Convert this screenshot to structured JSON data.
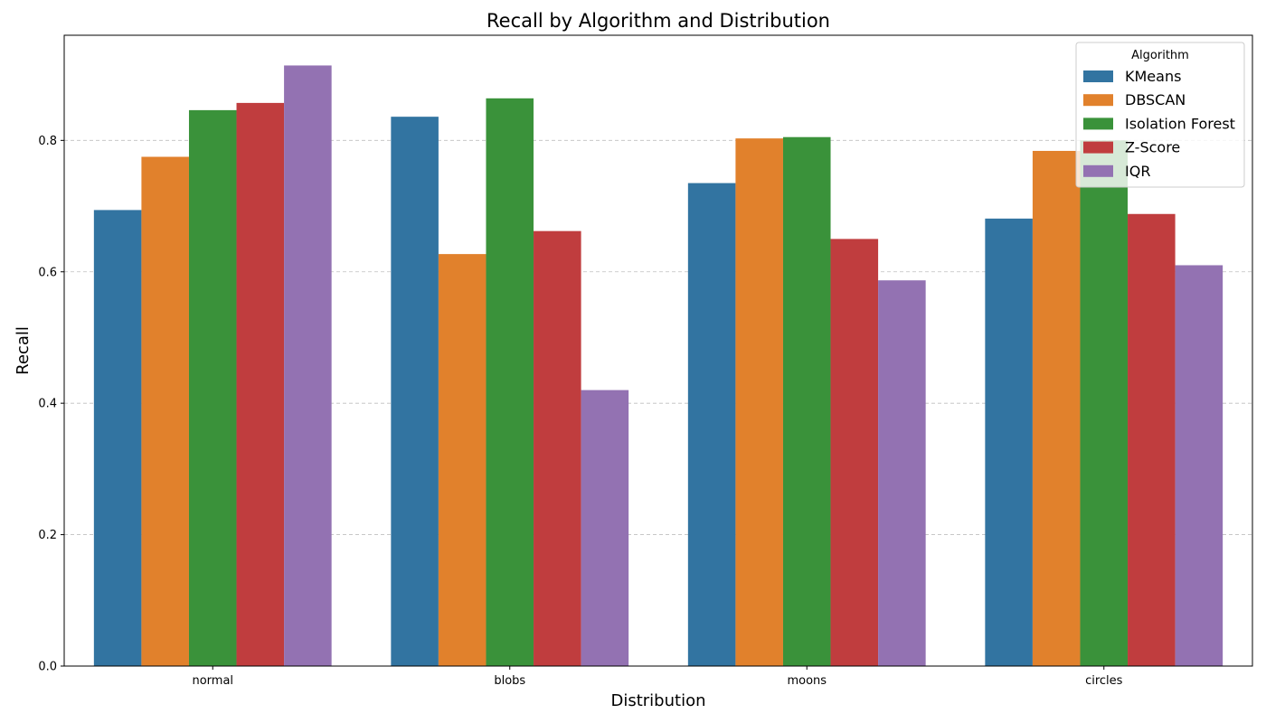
{
  "chart_data": {
    "type": "bar",
    "title": "Recall by Algorithm and Distribution",
    "xlabel": "Distribution",
    "ylabel": "Recall",
    "categories": [
      "normal",
      "blobs",
      "moons",
      "circles"
    ],
    "ylim": [
      0,
      0.96
    ],
    "yticks": [
      "0.0",
      "0.2",
      "0.4",
      "0.6",
      "0.8"
    ],
    "grid": "y-dashed",
    "legend_title": "Algorithm",
    "legend_position": "top-right",
    "series": [
      {
        "name": "KMeans",
        "color": "#3274a1",
        "values": [
          0.694,
          0.836,
          0.735,
          0.681
        ]
      },
      {
        "name": "DBSCAN",
        "color": "#e1812c",
        "values": [
          0.775,
          0.627,
          0.803,
          0.784
        ]
      },
      {
        "name": "Isolation Forest",
        "color": "#3a923a",
        "values": [
          0.846,
          0.864,
          0.805,
          0.8
        ]
      },
      {
        "name": "Z-Score",
        "color": "#c03d3e",
        "values": [
          0.857,
          0.662,
          0.65,
          0.688
        ]
      },
      {
        "name": "IQR",
        "color": "#9372b2",
        "values": [
          0.914,
          0.42,
          0.587,
          0.61
        ]
      }
    ]
  }
}
